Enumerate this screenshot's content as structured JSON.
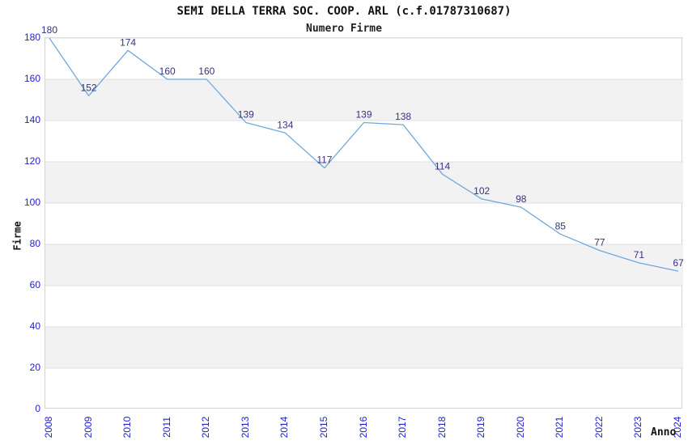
{
  "chart_data": {
    "type": "line",
    "title": "SEMI DELLA TERRA SOC. COOP. ARL (c.f.01787310687)",
    "subtitle": "Numero Firme",
    "xlabel": "Anno",
    "ylabel": "Firme",
    "categories": [
      "2008",
      "2009",
      "2010",
      "2011",
      "2012",
      "2013",
      "2014",
      "2015",
      "2016",
      "2017",
      "2018",
      "2019",
      "2020",
      "2021",
      "2022",
      "2023",
      "2024"
    ],
    "values": [
      180,
      152,
      174,
      160,
      160,
      139,
      134,
      117,
      139,
      138,
      114,
      102,
      98,
      85,
      77,
      71,
      67
    ],
    "ylim": [
      0,
      180
    ],
    "ytick_step": 20,
    "grid": true,
    "legend": "none",
    "colors": {
      "line": "#6fa8dc",
      "tick_label": "#2222cc",
      "data_label": "#333380",
      "band": "#f2f2f2",
      "gridline": "#e0e0e0",
      "plot_border": "#d4d4d4",
      "background": "#ffffff"
    }
  }
}
